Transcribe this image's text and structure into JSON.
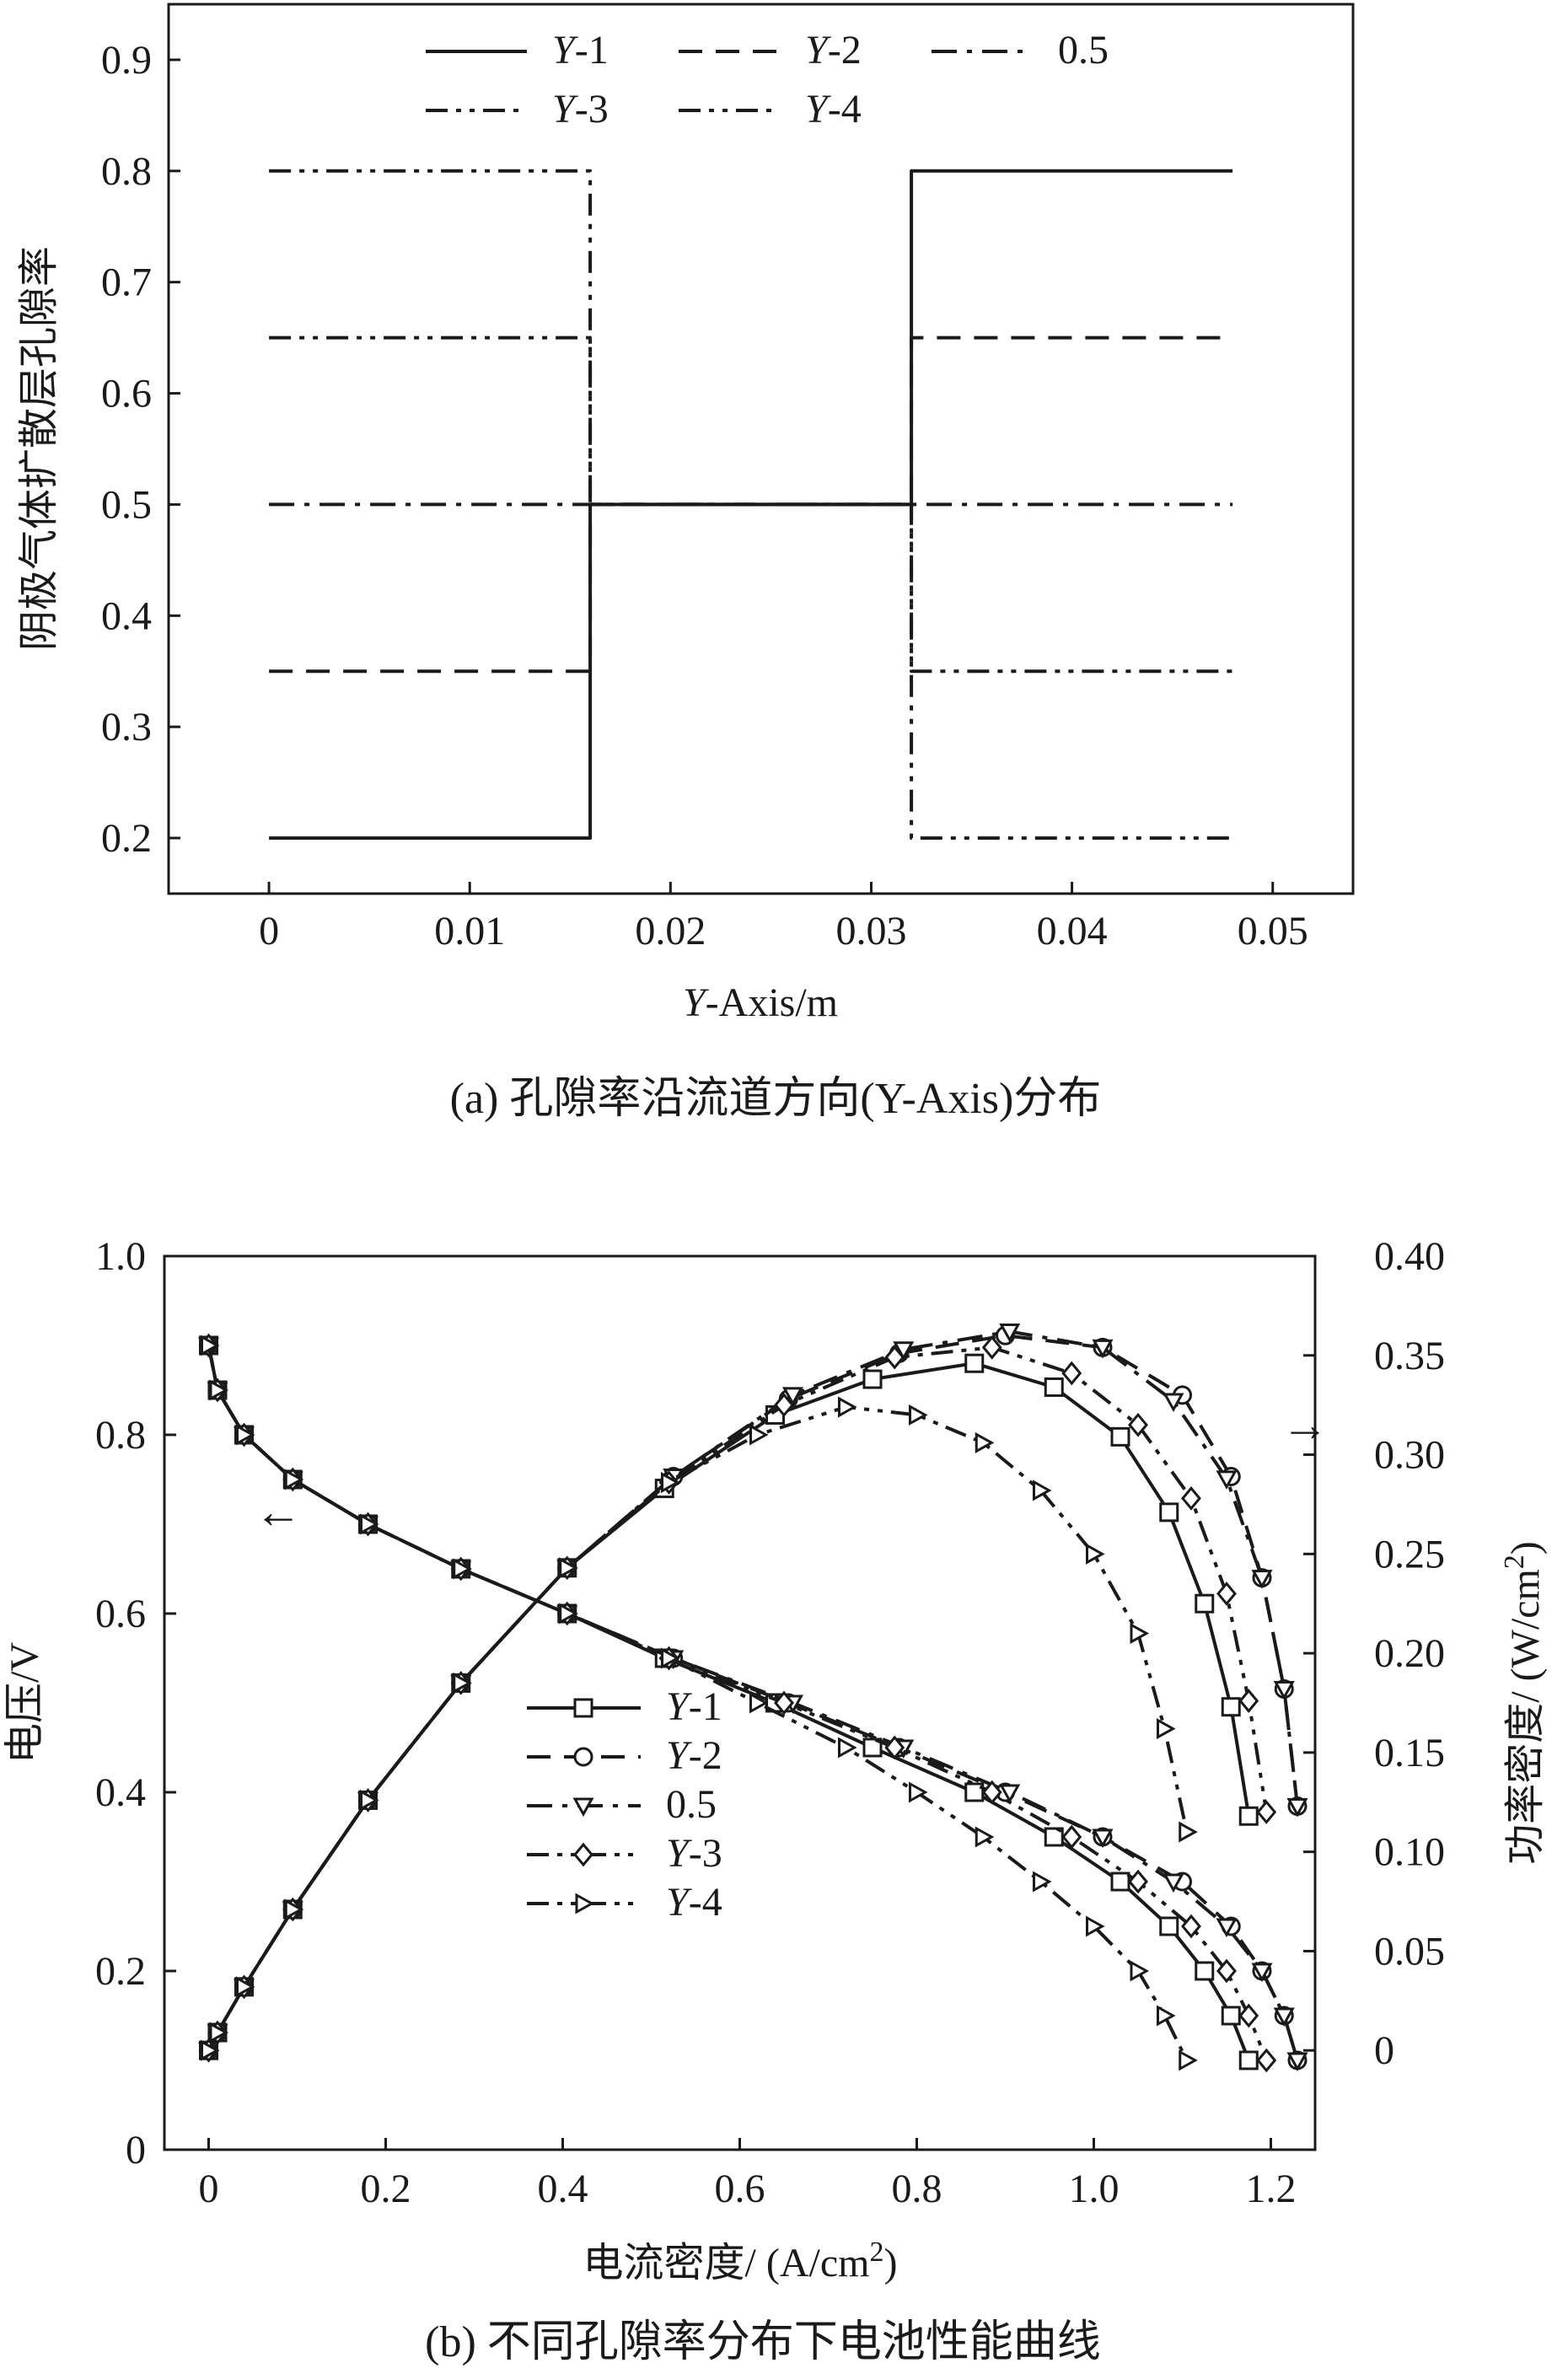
{
  "chart_data": [
    {
      "type": "line",
      "panel": "a",
      "caption": "(a) 孔隙率沿流道方向(Y-Axis)分布",
      "xlabel": "Y-Axis/m",
      "ylabel": "阴极气体扩散层孔隙率",
      "xlim": [
        -0.005,
        0.054
      ],
      "ylim": [
        0.15,
        0.95
      ],
      "xticks": [
        0,
        0.01,
        0.02,
        0.03,
        0.04,
        0.05
      ],
      "xtick_labels": [
        "0",
        "0.01",
        "0.02",
        "0.03",
        "0.04",
        "0.05"
      ],
      "yticks": [
        0.2,
        0.3,
        0.4,
        0.5,
        0.6,
        0.7,
        0.8,
        0.9
      ],
      "ytick_labels": [
        "0.2",
        "0.3",
        "0.4",
        "0.5",
        "0.6",
        "0.7",
        "0.8",
        "0.9"
      ],
      "grid": false,
      "legend_position": "top",
      "series": [
        {
          "name": "Y-1",
          "style": "solid",
          "x": [
            0,
            0.016,
            0.016,
            0.032,
            0.032,
            0.048
          ],
          "y": [
            0.2,
            0.2,
            0.5,
            0.5,
            0.8,
            0.8
          ]
        },
        {
          "name": "Y-2",
          "style": "dash",
          "x": [
            0,
            0.016,
            0.016,
            0.032,
            0.032,
            0.048
          ],
          "y": [
            0.35,
            0.35,
            0.5,
            0.5,
            0.65,
            0.65
          ]
        },
        {
          "name": "0.5",
          "style": "dashdot",
          "x": [
            0,
            0.048
          ],
          "y": [
            0.5,
            0.5
          ]
        },
        {
          "name": "Y-3",
          "style": "dashdotdot",
          "x": [
            0,
            0.016,
            0.016,
            0.032,
            0.032,
            0.048
          ],
          "y": [
            0.65,
            0.65,
            0.5,
            0.5,
            0.35,
            0.35
          ]
        },
        {
          "name": "Y-4",
          "style": "dashdotdot",
          "x": [
            0,
            0.016,
            0.016,
            0.032,
            0.032,
            0.048
          ],
          "y": [
            0.8,
            0.8,
            0.5,
            0.5,
            0.2,
            0.2
          ]
        }
      ]
    },
    {
      "type": "line",
      "panel": "b",
      "caption": "(b) 不同孔隙率分布下电池性能曲线",
      "xlabel": "电流密度/ (A/cm²)",
      "ylabel": "电压/V",
      "y2label": "功率密度/ (W/cm²)",
      "xlim": [
        -0.05,
        1.25
      ],
      "ylim": [
        0,
        1.0
      ],
      "y2lim": [
        -0.05,
        0.4
      ],
      "xticks": [
        0,
        0.2,
        0.4,
        0.6,
        0.8,
        1.0,
        1.2
      ],
      "xtick_labels": [
        "0",
        "0.2",
        "0.4",
        "0.6",
        "0.8",
        "1.0",
        "1.2"
      ],
      "yticks": [
        0,
        0.2,
        0.4,
        0.6,
        0.8,
        1.0
      ],
      "ytick_labels": [
        "0",
        "0.2",
        "0.4",
        "0.6",
        "0.8",
        "1.0"
      ],
      "y2ticks": [
        0,
        0.05,
        0.1,
        0.15,
        0.2,
        0.25,
        0.3,
        0.35,
        0.4
      ],
      "y2tick_labels": [
        "0",
        "0.05",
        "0.10",
        "0.15",
        "0.20",
        "0.25",
        "0.30",
        "0.35",
        "0.40"
      ],
      "grid": false,
      "legend_position": "lower-left",
      "annotations": [
        {
          "text": "←",
          "points_to": "left axis (voltage)"
        },
        {
          "text": "→",
          "points_to": "right axis (power density)"
        }
      ],
      "series": [
        {
          "name": "Y-1",
          "style": "solid",
          "marker": "square",
          "voltage": {
            "x": [
              0,
              0.01,
              0.04,
              0.095,
              0.18,
              0.285,
              0.405,
              0.515,
              0.64,
              0.75,
              0.865,
              0.955,
              1.03,
              1.085,
              1.125,
              1.155,
              1.175
            ],
            "y": [
              0.9,
              0.85,
              0.8,
              0.75,
              0.7,
              0.65,
              0.6,
              0.55,
              0.5,
              0.45,
              0.4,
              0.35,
              0.3,
              0.25,
              0.2,
              0.15,
              0.1
            ]
          },
          "power": {
            "x": [
              0,
              0.01,
              0.04,
              0.095,
              0.18,
              0.285,
              0.405,
              0.515,
              0.64,
              0.75,
              0.865,
              0.955,
              1.03,
              1.085,
              1.125,
              1.155,
              1.175
            ],
            "y": [
              0.0,
              0.009,
              0.032,
              0.071,
              0.126,
              0.185,
              0.243,
              0.283,
              0.32,
              0.338,
              0.346,
              0.334,
              0.309,
              0.271,
              0.225,
              0.173,
              0.118
            ]
          }
        },
        {
          "name": "Y-2",
          "style": "dash",
          "marker": "circle",
          "voltage": {
            "x": [
              0,
              0.01,
              0.04,
              0.095,
              0.18,
              0.285,
              0.405,
              0.525,
              0.655,
              0.78,
              0.9,
              1.01,
              1.1,
              1.155,
              1.19,
              1.215,
              1.23
            ],
            "y": [
              0.9,
              0.85,
              0.8,
              0.75,
              0.7,
              0.65,
              0.6,
              0.55,
              0.5,
              0.45,
              0.4,
              0.35,
              0.3,
              0.25,
              0.2,
              0.15,
              0.1
            ]
          },
          "power": {
            "x": [
              0,
              0.01,
              0.04,
              0.095,
              0.18,
              0.285,
              0.405,
              0.525,
              0.655,
              0.78,
              0.9,
              1.01,
              1.1,
              1.155,
              1.19,
              1.215,
              1.23
            ],
            "y": [
              0.0,
              0.009,
              0.032,
              0.071,
              0.126,
              0.185,
              0.243,
              0.289,
              0.328,
              0.351,
              0.36,
              0.354,
              0.33,
              0.289,
              0.238,
              0.182,
              0.123
            ]
          }
        },
        {
          "name": "0.5",
          "style": "dashdot",
          "marker": "triangle-down",
          "voltage": {
            "x": [
              0,
              0.01,
              0.04,
              0.095,
              0.18,
              0.285,
              0.405,
              0.525,
              0.66,
              0.785,
              0.905,
              1.01,
              1.09,
              1.15,
              1.19,
              1.215,
              1.23
            ],
            "y": [
              0.9,
              0.85,
              0.8,
              0.75,
              0.7,
              0.65,
              0.6,
              0.55,
              0.5,
              0.45,
              0.4,
              0.35,
              0.3,
              0.25,
              0.2,
              0.15,
              0.1
            ]
          },
          "power": {
            "x": [
              0,
              0.01,
              0.04,
              0.095,
              0.18,
              0.285,
              0.405,
              0.525,
              0.66,
              0.785,
              0.905,
              1.01,
              1.09,
              1.15,
              1.19,
              1.215,
              1.23
            ],
            "y": [
              0.0,
              0.009,
              0.032,
              0.071,
              0.126,
              0.185,
              0.243,
              0.289,
              0.33,
              0.353,
              0.362,
              0.354,
              0.327,
              0.288,
              0.238,
              0.182,
              0.123
            ]
          }
        },
        {
          "name": "Y-3",
          "style": "dashdotdot",
          "marker": "diamond",
          "voltage": {
            "x": [
              0,
              0.01,
              0.04,
              0.095,
              0.18,
              0.285,
              0.405,
              0.52,
              0.65,
              0.775,
              0.885,
              0.975,
              1.05,
              1.11,
              1.15,
              1.175,
              1.195
            ],
            "y": [
              0.9,
              0.85,
              0.8,
              0.75,
              0.7,
              0.65,
              0.6,
              0.55,
              0.5,
              0.45,
              0.4,
              0.35,
              0.3,
              0.25,
              0.2,
              0.15,
              0.1
            ]
          },
          "power": {
            "x": [
              0,
              0.01,
              0.04,
              0.095,
              0.18,
              0.285,
              0.405,
              0.52,
              0.65,
              0.775,
              0.885,
              0.975,
              1.05,
              1.11,
              1.15,
              1.175,
              1.195
            ],
            "y": [
              0.0,
              0.009,
              0.032,
              0.071,
              0.126,
              0.185,
              0.243,
              0.286,
              0.325,
              0.349,
              0.354,
              0.341,
              0.315,
              0.278,
              0.23,
              0.176,
              0.12
            ]
          }
        },
        {
          "name": "Y-4",
          "style": "dashdotdot",
          "marker": "triangle-right",
          "voltage": {
            "x": [
              0,
              0.01,
              0.04,
              0.095,
              0.18,
              0.285,
              0.405,
              0.52,
              0.62,
              0.72,
              0.8,
              0.875,
              0.94,
              1.0,
              1.05,
              1.08,
              1.105
            ],
            "y": [
              0.9,
              0.85,
              0.8,
              0.75,
              0.7,
              0.65,
              0.6,
              0.55,
              0.5,
              0.45,
              0.4,
              0.35,
              0.3,
              0.25,
              0.2,
              0.15,
              0.1
            ]
          },
          "power": {
            "x": [
              0,
              0.01,
              0.04,
              0.095,
              0.18,
              0.285,
              0.405,
              0.52,
              0.62,
              0.72,
              0.8,
              0.875,
              0.94,
              1.0,
              1.05,
              1.08,
              1.105
            ],
            "y": [
              0.0,
              0.009,
              0.032,
              0.071,
              0.126,
              0.185,
              0.243,
              0.286,
              0.31,
              0.324,
              0.32,
              0.306,
              0.282,
              0.25,
              0.21,
              0.162,
              0.11
            ]
          }
        }
      ]
    }
  ]
}
